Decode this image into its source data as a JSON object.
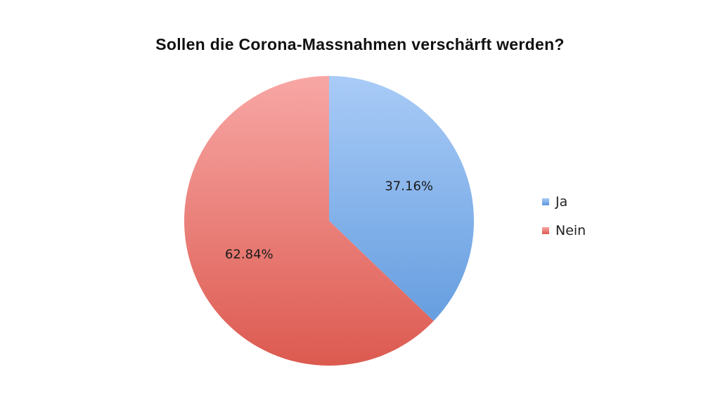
{
  "chart_data": {
    "type": "pie",
    "title": "Sollen die Corona-Massnahmen verschärft werden?",
    "categories": [
      "Ja",
      "Nein"
    ],
    "values": [
      37.16,
      62.84
    ],
    "data_labels": [
      "37.16%",
      "62.84%"
    ],
    "legend_position": "right",
    "colors": [
      {
        "light": "#a9cbf7",
        "dark": "#5a96db"
      },
      {
        "light": "#f8a7a5",
        "dark": "#dc5a50"
      }
    ]
  }
}
